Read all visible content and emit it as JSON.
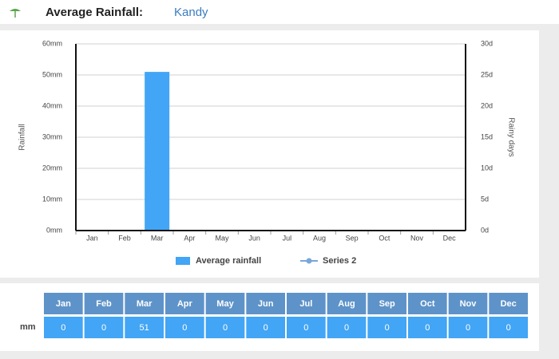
{
  "chart_data": {
    "type": "bar",
    "title": "Average Rainfall:",
    "subtitle": "Kandy",
    "ylabel": "Rainfall",
    "y2label": "Rainy days",
    "categories": [
      "Jan",
      "Feb",
      "Mar",
      "Apr",
      "May",
      "Jun",
      "Jul",
      "Aug",
      "Sep",
      "Oct",
      "Nov",
      "Dec"
    ],
    "series": [
      {
        "name": "Average rainfall",
        "color": "#42a5f5",
        "values": [
          0,
          0,
          51,
          0,
          0,
          0,
          0,
          0,
          0,
          0,
          0,
          0
        ]
      },
      {
        "name": "Series 2",
        "color": "#7aa6d8",
        "axis": "y2",
        "values": [
          null,
          null,
          null,
          null,
          null,
          null,
          null,
          null,
          null,
          null,
          null,
          null
        ]
      }
    ],
    "ylim": [
      0,
      60
    ],
    "yticks": [
      {
        "value": 0,
        "label": "0mm"
      },
      {
        "value": 10,
        "label": "10mm"
      },
      {
        "value": 20,
        "label": "20mm"
      },
      {
        "value": 30,
        "label": "30mm"
      },
      {
        "value": 40,
        "label": "40mm"
      },
      {
        "value": 50,
        "label": "50mm"
      },
      {
        "value": 60,
        "label": "60mm"
      }
    ],
    "y2lim": [
      0,
      30
    ],
    "y2ticks": [
      {
        "value": 0,
        "label": "0d"
      },
      {
        "value": 5,
        "label": "5d"
      },
      {
        "value": 10,
        "label": "10d"
      },
      {
        "value": 15,
        "label": "15d"
      },
      {
        "value": 20,
        "label": "20d"
      },
      {
        "value": 25,
        "label": "25d"
      },
      {
        "value": 30,
        "label": "30d"
      }
    ],
    "grid": true,
    "legend": "bottom"
  },
  "table": {
    "row_label": "mm"
  }
}
